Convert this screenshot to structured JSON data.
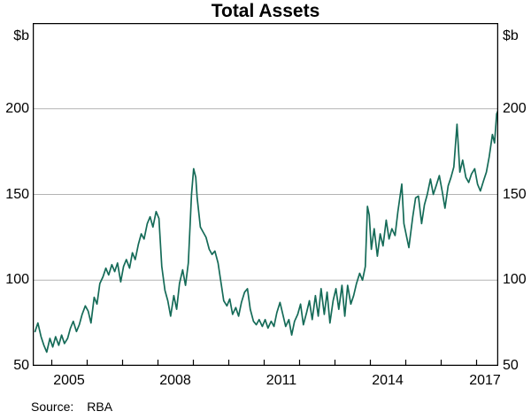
{
  "title": "Total Assets",
  "source": {
    "label": "Source:",
    "value": "RBA"
  },
  "chart_data": {
    "type": "line",
    "title": "Total Assets",
    "ylabel_left": "$b",
    "ylabel_right": "$b",
    "ylim": [
      50,
      250
    ],
    "yticks": [
      "50",
      "100",
      "150",
      "200"
    ],
    "gridlines": [
      100,
      150,
      200
    ],
    "xlim_years": [
      2004.48,
      2017.62
    ],
    "xticks_years": [
      2005,
      2006,
      2007,
      2008,
      2009,
      2010,
      2011,
      2012,
      2013,
      2014,
      2015,
      2016,
      2017
    ],
    "xtick_labels": [
      "2005",
      "2008",
      "2011",
      "2014",
      "2017"
    ],
    "grid_on": true,
    "legend_position": "none",
    "line_color": "#156b58",
    "grid_color": "#b3b3b3",
    "frame_color": "#000000",
    "series": [
      {
        "name": "Total Assets ($b)",
        "x_unit": "decimal_year",
        "points": [
          [
            2004.54,
            70
          ],
          [
            2004.62,
            75
          ],
          [
            2004.71,
            67
          ],
          [
            2004.79,
            62
          ],
          [
            2004.87,
            58
          ],
          [
            2004.96,
            66
          ],
          [
            2005.04,
            61
          ],
          [
            2005.12,
            67
          ],
          [
            2005.21,
            62
          ],
          [
            2005.29,
            68
          ],
          [
            2005.37,
            63
          ],
          [
            2005.46,
            66
          ],
          [
            2005.54,
            72
          ],
          [
            2005.62,
            76
          ],
          [
            2005.71,
            70
          ],
          [
            2005.79,
            74
          ],
          [
            2005.87,
            80
          ],
          [
            2005.96,
            85
          ],
          [
            2006.04,
            82
          ],
          [
            2006.12,
            75
          ],
          [
            2006.21,
            90
          ],
          [
            2006.29,
            86
          ],
          [
            2006.37,
            98
          ],
          [
            2006.46,
            102
          ],
          [
            2006.54,
            107
          ],
          [
            2006.62,
            103
          ],
          [
            2006.71,
            109
          ],
          [
            2006.79,
            105
          ],
          [
            2006.87,
            110
          ],
          [
            2006.96,
            99
          ],
          [
            2007.04,
            108
          ],
          [
            2007.12,
            112
          ],
          [
            2007.21,
            107
          ],
          [
            2007.29,
            116
          ],
          [
            2007.37,
            112
          ],
          [
            2007.46,
            121
          ],
          [
            2007.54,
            127
          ],
          [
            2007.62,
            124
          ],
          [
            2007.71,
            133
          ],
          [
            2007.79,
            137
          ],
          [
            2007.87,
            131
          ],
          [
            2007.96,
            140
          ],
          [
            2008.04,
            136
          ],
          [
            2008.12,
            108
          ],
          [
            2008.21,
            94
          ],
          [
            2008.29,
            88
          ],
          [
            2008.37,
            79
          ],
          [
            2008.46,
            91
          ],
          [
            2008.54,
            83
          ],
          [
            2008.62,
            98
          ],
          [
            2008.71,
            106
          ],
          [
            2008.79,
            97
          ],
          [
            2008.87,
            110
          ],
          [
            2008.96,
            150
          ],
          [
            2009.02,
            165
          ],
          [
            2009.08,
            160
          ],
          [
            2009.12,
            148
          ],
          [
            2009.21,
            131
          ],
          [
            2009.29,
            128
          ],
          [
            2009.37,
            125
          ],
          [
            2009.46,
            118
          ],
          [
            2009.54,
            115
          ],
          [
            2009.62,
            117
          ],
          [
            2009.71,
            110
          ],
          [
            2009.79,
            99
          ],
          [
            2009.87,
            88
          ],
          [
            2009.96,
            85
          ],
          [
            2010.04,
            89
          ],
          [
            2010.12,
            80
          ],
          [
            2010.21,
            84
          ],
          [
            2010.29,
            79
          ],
          [
            2010.37,
            87
          ],
          [
            2010.46,
            93
          ],
          [
            2010.54,
            95
          ],
          [
            2010.62,
            83
          ],
          [
            2010.71,
            76
          ],
          [
            2010.79,
            74
          ],
          [
            2010.87,
            77
          ],
          [
            2010.96,
            73
          ],
          [
            2011.04,
            77
          ],
          [
            2011.12,
            72
          ],
          [
            2011.21,
            76
          ],
          [
            2011.29,
            73
          ],
          [
            2011.37,
            81
          ],
          [
            2011.46,
            87
          ],
          [
            2011.54,
            80
          ],
          [
            2011.62,
            73
          ],
          [
            2011.71,
            77
          ],
          [
            2011.79,
            68
          ],
          [
            2011.87,
            76
          ],
          [
            2011.96,
            80
          ],
          [
            2012.04,
            86
          ],
          [
            2012.12,
            74
          ],
          [
            2012.21,
            81
          ],
          [
            2012.29,
            88
          ],
          [
            2012.37,
            77
          ],
          [
            2012.46,
            91
          ],
          [
            2012.54,
            79
          ],
          [
            2012.62,
            95
          ],
          [
            2012.71,
            80
          ],
          [
            2012.79,
            93
          ],
          [
            2012.87,
            75
          ],
          [
            2012.96,
            88
          ],
          [
            2013.04,
            95
          ],
          [
            2013.12,
            83
          ],
          [
            2013.21,
            97
          ],
          [
            2013.29,
            79
          ],
          [
            2013.37,
            97
          ],
          [
            2013.46,
            86
          ],
          [
            2013.54,
            91
          ],
          [
            2013.62,
            98
          ],
          [
            2013.71,
            104
          ],
          [
            2013.79,
            100
          ],
          [
            2013.87,
            108
          ],
          [
            2013.93,
            143
          ],
          [
            2013.98,
            138
          ],
          [
            2014.04,
            118
          ],
          [
            2014.12,
            130
          ],
          [
            2014.21,
            114
          ],
          [
            2014.29,
            127
          ],
          [
            2014.37,
            120
          ],
          [
            2014.46,
            135
          ],
          [
            2014.54,
            124
          ],
          [
            2014.62,
            130
          ],
          [
            2014.71,
            126
          ],
          [
            2014.79,
            140
          ],
          [
            2014.9,
            156
          ],
          [
            2014.96,
            133
          ],
          [
            2015.04,
            125
          ],
          [
            2015.1,
            119
          ],
          [
            2015.21,
            137
          ],
          [
            2015.29,
            148
          ],
          [
            2015.37,
            149
          ],
          [
            2015.46,
            133
          ],
          [
            2015.54,
            144
          ],
          [
            2015.62,
            150
          ],
          [
            2015.71,
            159
          ],
          [
            2015.79,
            150
          ],
          [
            2015.87,
            155
          ],
          [
            2015.96,
            161
          ],
          [
            2016.04,
            152
          ],
          [
            2016.12,
            142
          ],
          [
            2016.21,
            155
          ],
          [
            2016.29,
            160
          ],
          [
            2016.37,
            166
          ],
          [
            2016.46,
            191
          ],
          [
            2016.54,
            163
          ],
          [
            2016.62,
            170
          ],
          [
            2016.71,
            160
          ],
          [
            2016.79,
            157
          ],
          [
            2016.87,
            162
          ],
          [
            2016.96,
            165
          ],
          [
            2017.04,
            156
          ],
          [
            2017.12,
            152
          ],
          [
            2017.21,
            158
          ],
          [
            2017.29,
            163
          ],
          [
            2017.37,
            172
          ],
          [
            2017.46,
            185
          ],
          [
            2017.52,
            180
          ],
          [
            2017.58,
            197
          ],
          [
            2017.62,
            199
          ]
        ]
      }
    ]
  }
}
